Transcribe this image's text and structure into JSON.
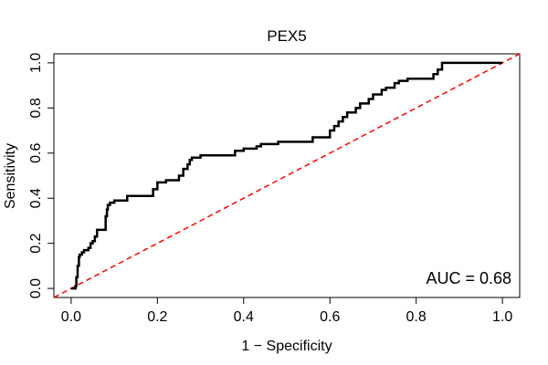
{
  "chart_data": {
    "type": "line",
    "title": "PEX5",
    "xlabel": "1 − Specificity",
    "ylabel": "Sensitivity",
    "xlim": [
      -0.04,
      1.04
    ],
    "ylim": [
      -0.04,
      1.04
    ],
    "x_ticks": [
      "0.0",
      "0.2",
      "0.4",
      "0.6",
      "0.8",
      "1.0"
    ],
    "y_ticks": [
      "0.0",
      "0.2",
      "0.4",
      "0.6",
      "0.8",
      "1.0"
    ],
    "grid": false,
    "annotation": "AUC = 0.68",
    "series": [
      {
        "style": "step",
        "color": "#000000",
        "x": [
          0.0,
          0.01,
          0.012,
          0.015,
          0.018,
          0.02,
          0.025,
          0.03,
          0.04,
          0.045,
          0.05,
          0.055,
          0.06,
          0.07,
          0.08,
          0.083,
          0.085,
          0.09,
          0.1,
          0.13,
          0.18,
          0.19,
          0.2,
          0.22,
          0.25,
          0.26,
          0.27,
          0.275,
          0.28,
          0.3,
          0.37,
          0.38,
          0.4,
          0.43,
          0.44,
          0.48,
          0.56,
          0.6,
          0.61,
          0.62,
          0.63,
          0.64,
          0.66,
          0.67,
          0.69,
          0.7,
          0.72,
          0.73,
          0.75,
          0.76,
          0.78,
          0.84,
          0.85,
          0.86,
          1.0
        ],
        "y": [
          0.0,
          0.01,
          0.05,
          0.1,
          0.14,
          0.15,
          0.16,
          0.17,
          0.18,
          0.2,
          0.21,
          0.23,
          0.26,
          0.26,
          0.32,
          0.35,
          0.37,
          0.38,
          0.39,
          0.41,
          0.41,
          0.44,
          0.47,
          0.48,
          0.5,
          0.53,
          0.55,
          0.57,
          0.58,
          0.59,
          0.59,
          0.61,
          0.62,
          0.63,
          0.64,
          0.65,
          0.67,
          0.7,
          0.72,
          0.74,
          0.76,
          0.78,
          0.8,
          0.82,
          0.84,
          0.86,
          0.88,
          0.89,
          0.91,
          0.92,
          0.93,
          0.95,
          0.97,
          1.0,
          1.0
        ]
      },
      {
        "style": "diagonal-dashed",
        "color": "#ff0000",
        "x": [
          -0.04,
          1.04
        ],
        "y": [
          -0.04,
          1.04
        ]
      }
    ]
  }
}
